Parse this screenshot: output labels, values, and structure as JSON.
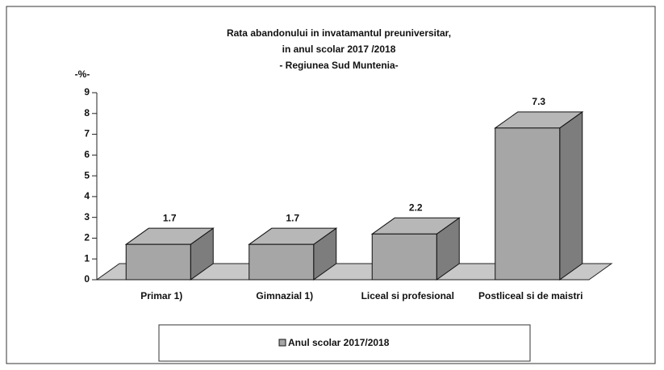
{
  "chart_data": {
    "type": "bar3d",
    "title": "Rata abandonului in invatamantul preuniversitar,",
    "subtitle": "in anul scolar 2017 /2018",
    "subtitle2": "- Regiunea Sud Muntenia-",
    "y_label": "-%-",
    "categories": [
      "Primar 1)",
      "Gimnazial 1)",
      "Liceal si profesional",
      "Postliceal si de maistri"
    ],
    "series": [
      {
        "name": "Anul scolar 2017/2018",
        "color": "#a6a6a6",
        "values": [
          1.7,
          1.7,
          2.2,
          7.3
        ]
      }
    ],
    "ylim": [
      0,
      9
    ],
    "yticks": [
      0,
      1,
      2,
      3,
      4,
      5,
      6,
      7,
      8,
      9
    ],
    "grid": false,
    "legend": "bottom"
  }
}
